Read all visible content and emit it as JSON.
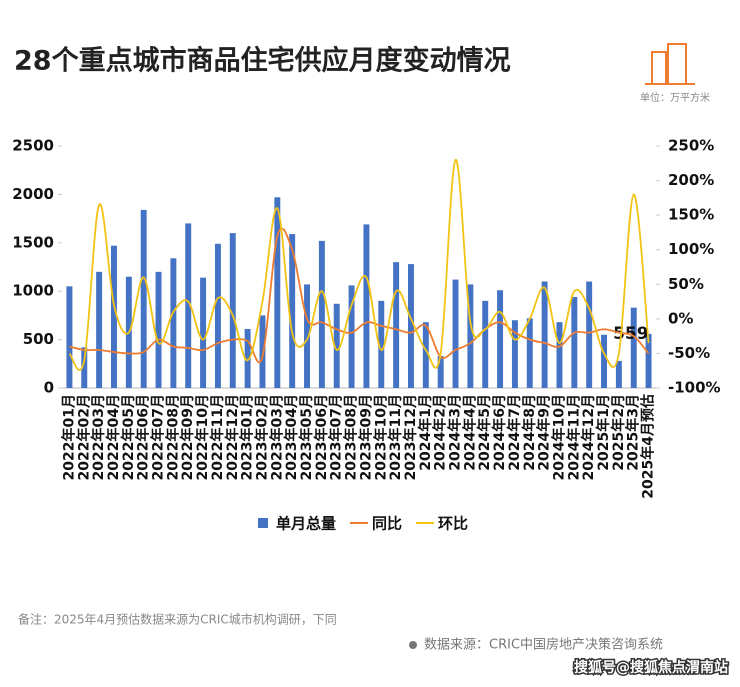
{
  "chart_data": {
    "type": "bar-line",
    "title": "28个重点城市商品住宅供应月度变动情况",
    "unit": "单位：万平方米",
    "note": "备注：2025年4月预估数据来源为CRIC城市机构调研，下同",
    "source": "数据来源：CRIC中国房地产决策咨询系统",
    "watermark": "搜狐号@搜狐焦点渭南站",
    "categories": [
      "2022年01月",
      "2022年02月",
      "2022年03月",
      "2022年04月",
      "2022年05月",
      "2022年06月",
      "2022年07月",
      "2022年08月",
      "2022年09月",
      "2022年10月",
      "2022年11月",
      "2022年12月",
      "2023年01月",
      "2023年02月",
      "2023年03月",
      "2023年04月",
      "2023年05月",
      "2023年06月",
      "2023年07月",
      "2023年08月",
      "2023年09月",
      "2023年10月",
      "2023年11月",
      "2023年12月",
      "2024年1月",
      "2024年2月",
      "2024年3月",
      "2024年4月",
      "2024年5月",
      "2024年6月",
      "2024年7月",
      "2024年8月",
      "2024年9月",
      "2024年10月",
      "2024年11月",
      "2024年12月",
      "2025年1月",
      "2025年2月",
      "2025年3月",
      "2025年4月预估"
    ],
    "series": [
      {
        "name": "单月总量",
        "type": "bar",
        "color": "#4472c4",
        "values": [
          1050,
          420,
          1200,
          1470,
          1150,
          1840,
          1200,
          1340,
          1700,
          1140,
          1490,
          1600,
          610,
          750,
          1970,
          1590,
          1070,
          1520,
          870,
          1060,
          1690,
          900,
          1300,
          1280,
          680,
          330,
          1120,
          1070,
          900,
          1010,
          700,
          720,
          1100,
          680,
          940,
          1100,
          550,
          280,
          830,
          559
        ],
        "value_labels": [
          null,
          null,
          null,
          null,
          null,
          null,
          null,
          null,
          null,
          null,
          null,
          null,
          null,
          null,
          null,
          null,
          null,
          null,
          null,
          null,
          null,
          null,
          null,
          null,
          null,
          null,
          null,
          null,
          null,
          null,
          null,
          null,
          null,
          null,
          null,
          null,
          null,
          null,
          null,
          "559"
        ]
      },
      {
        "name": "同比",
        "type": "line",
        "axis": "y2",
        "color": "#ed7d31",
        "values": [
          -40,
          -45,
          -45,
          -48,
          -50,
          -48,
          -30,
          -40,
          -42,
          -45,
          -35,
          -30,
          -32,
          -55,
          120,
          100,
          0,
          -5,
          -15,
          -20,
          -5,
          -10,
          -15,
          -20,
          -10,
          -55,
          -45,
          -35,
          -15,
          -5,
          -20,
          -30,
          -35,
          -40,
          -20,
          -20,
          -15,
          -20,
          -25,
          -50
        ]
      },
      {
        "name": "环比",
        "type": "line",
        "axis": "y2",
        "color": "#f2c314",
        "values": [
          -50,
          -60,
          165,
          20,
          -20,
          60,
          -35,
          10,
          25,
          -30,
          30,
          5,
          -60,
          25,
          160,
          -20,
          -30,
          40,
          -45,
          20,
          60,
          -45,
          40,
          0,
          -45,
          -50,
          230,
          -5,
          -15,
          10,
          -30,
          0,
          45,
          -35,
          40,
          15,
          -50,
          -50,
          180,
          -35
        ]
      }
    ],
    "ylim": [
      0,
      2500
    ],
    "yticks": [
      0,
      500,
      1000,
      1500,
      2000,
      2500
    ],
    "y2lim": [
      -100,
      250
    ],
    "y2ticks": [
      {
        "value": -100,
        "label": "-100%"
      },
      {
        "value": -50,
        "label": "-50%"
      },
      {
        "value": 0,
        "label": "0%"
      },
      {
        "value": 50,
        "label": "50%"
      },
      {
        "value": 100,
        "label": "100%"
      },
      {
        "value": 150,
        "label": "150%"
      },
      {
        "value": 200,
        "label": "200%"
      },
      {
        "value": 250,
        "label": "250%"
      }
    ]
  }
}
